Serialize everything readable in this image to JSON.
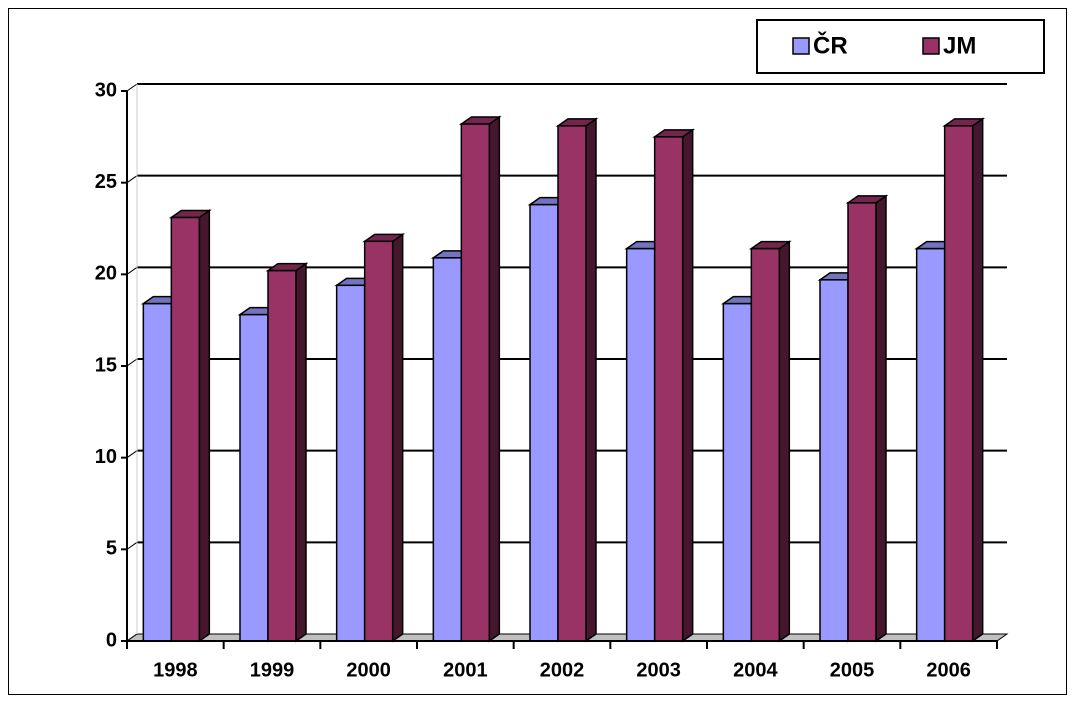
{
  "chart_data": {
    "type": "bar3d",
    "categories": [
      "1998",
      "1999",
      "2000",
      "2001",
      "2002",
      "2003",
      "2004",
      "2005",
      "2006"
    ],
    "series": [
      {
        "name": "ČR",
        "color": "#9999ff",
        "values": [
          18.4,
          17.8,
          19.4,
          20.9,
          23.8,
          21.4,
          18.4,
          19.7,
          21.4
        ]
      },
      {
        "name": "JM",
        "color": "#993366",
        "values": [
          23.1,
          20.2,
          21.8,
          28.2,
          28.1,
          27.5,
          21.4,
          23.9,
          28.1
        ]
      }
    ],
    "ylim": [
      0,
      30
    ],
    "yticks": [
      0,
      5,
      10,
      15,
      20,
      25,
      30
    ],
    "grid": true,
    "legend": "top-right"
  }
}
